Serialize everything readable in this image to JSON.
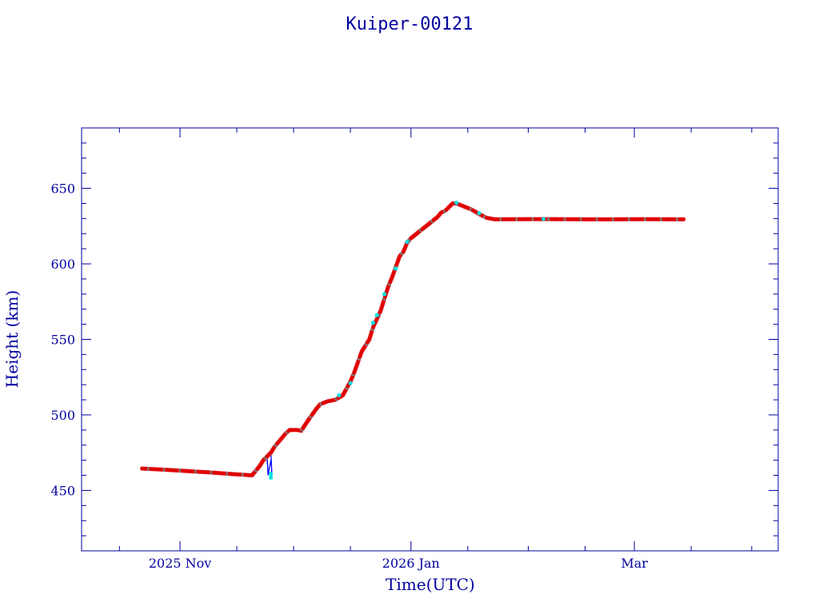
{
  "chart_data": {
    "type": "scatter",
    "title": "Kuiper-00121",
    "xlabel": "Time(UTC)",
    "ylabel": "Height (km)",
    "xlim": [
      "2025-10-06",
      "2026-04-08"
    ],
    "ylim": [
      410,
      690
    ],
    "y_ticks": [
      450,
      500,
      550,
      600,
      650
    ],
    "x_ticks": [
      {
        "date": "2025-11-01",
        "label": "2025 Nov"
      },
      {
        "date": "2026-01-01",
        "label": "2026 Jan"
      },
      {
        "date": "2026-03-01",
        "label": "Mar"
      }
    ],
    "x_minor_ticks": [
      "2025-10-16",
      "2025-11-16",
      "2025-12-01",
      "2025-12-16",
      "2026-01-16",
      "2026-02-01",
      "2026-02-16",
      "2026-03-16",
      "2026-04-01"
    ],
    "grid": false,
    "colors": {
      "text": "#0000a0",
      "frame": "#0000a0",
      "primary": "#e00000",
      "secondary": "#00e0e0",
      "spike": "#0000ff",
      "grey": "#7f7f7f"
    },
    "series": [
      {
        "color": "#e00000",
        "points": [
          [
            "2025-10-22",
            464.5
          ],
          [
            "2025-10-28",
            463.7
          ],
          [
            "2025-11-03",
            462.8
          ],
          [
            "2025-11-09",
            461.9
          ],
          [
            "2025-11-15",
            460.8
          ],
          [
            "2025-11-20",
            460.0
          ],
          [
            "2025-11-22",
            466.0
          ],
          [
            "2025-11-23",
            470.0
          ],
          [
            "2025-11-25",
            475.0
          ],
          [
            "2025-11-26",
            479.0
          ],
          [
            "2025-11-27",
            482.0
          ],
          [
            "2025-11-28",
            485.0
          ],
          [
            "2025-11-29",
            488.0
          ],
          [
            "2025-11-30",
            490.0
          ],
          [
            "2025-12-01",
            490.0
          ],
          [
            "2025-12-02",
            490.0
          ],
          [
            "2025-12-03",
            489.5
          ],
          [
            "2025-12-05",
            497.0
          ],
          [
            "2025-12-07",
            504.0
          ],
          [
            "2025-12-08",
            507.0
          ],
          [
            "2025-12-10",
            509.0
          ],
          [
            "2025-12-12",
            510.0
          ],
          [
            "2025-12-14",
            513.0
          ],
          [
            "2025-12-16",
            522.0
          ],
          [
            "2025-12-17",
            528.0
          ],
          [
            "2025-12-18",
            535.0
          ],
          [
            "2025-12-19",
            542.0
          ],
          [
            "2025-12-21",
            550.0
          ],
          [
            "2025-12-22",
            558.0
          ],
          [
            "2025-12-24",
            569.0
          ],
          [
            "2025-12-25",
            577.0
          ],
          [
            "2025-12-26",
            585.0
          ],
          [
            "2025-12-27",
            591.0
          ],
          [
            "2025-12-28",
            598.0
          ],
          [
            "2025-12-29",
            605.0
          ],
          [
            "2025-12-30",
            608.0
          ],
          [
            "2025-12-31",
            614.0
          ],
          [
            "2026-01-01",
            617.0
          ],
          [
            "2026-01-02",
            619.0
          ],
          [
            "2026-01-04",
            623.0
          ],
          [
            "2026-01-06",
            627.0
          ],
          [
            "2026-01-08",
            631.0
          ],
          [
            "2026-01-09",
            634.0
          ],
          [
            "2026-01-10",
            635.0
          ],
          [
            "2026-01-12",
            640.0
          ],
          [
            "2026-01-13",
            640.0
          ],
          [
            "2026-01-15",
            638.0
          ],
          [
            "2026-01-17",
            636.0
          ],
          [
            "2026-01-19",
            633.0
          ],
          [
            "2026-01-21",
            630.5
          ],
          [
            "2026-01-23",
            629.5
          ],
          [
            "2026-01-31",
            629.6
          ],
          [
            "2026-02-08",
            629.6
          ],
          [
            "2026-02-16",
            629.5
          ],
          [
            "2026-02-24",
            629.5
          ],
          [
            "2026-03-04",
            629.6
          ],
          [
            "2026-03-12",
            629.5
          ],
          [
            "2026-03-14",
            629.5
          ]
        ]
      },
      {
        "color": "#00e0e0",
        "points": [
          [
            "2025-11-25",
            461.0
          ],
          [
            "2025-11-25",
            458.5
          ],
          [
            "2025-12-13",
            513.0
          ],
          [
            "2025-12-16",
            521.0
          ],
          [
            "2025-12-22",
            561.0
          ],
          [
            "2025-12-23",
            566.0
          ],
          [
            "2025-12-25",
            580.0
          ],
          [
            "2025-12-28",
            597.0
          ],
          [
            "2025-12-31",
            614.5
          ],
          [
            "2026-01-13",
            640.5
          ],
          [
            "2026-01-19",
            633.5
          ],
          [
            "2026-02-05",
            629.7
          ]
        ]
      }
    ],
    "spike": {
      "color": "#0000ff",
      "points": [
        [
          "2025-11-24",
          470.0
        ],
        [
          "2025-11-24",
          463.0
        ],
        [
          "2025-11-24",
          472.0
        ],
        [
          "2025-11-24",
          460.0
        ],
        [
          "2025-11-25",
          470.0
        ],
        [
          "2025-11-25",
          462.0
        ],
        [
          "2025-11-25",
          476.0
        ],
        [
          "2025-11-25",
          459.0
        ]
      ]
    }
  }
}
